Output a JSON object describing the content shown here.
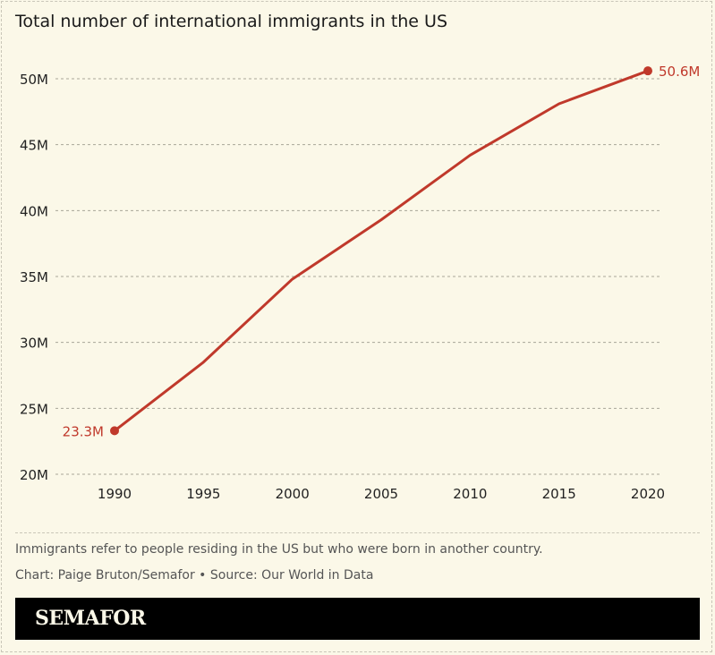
{
  "chart_data": {
    "type": "line",
    "title": "Total number of international immigrants in the US",
    "xlabel": "",
    "ylabel": "",
    "x": [
      1990,
      1995,
      2000,
      2005,
      2010,
      2015,
      2020
    ],
    "series": [
      {
        "values": [
          23.3,
          28.5,
          34.8,
          39.3,
          44.2,
          48.1,
          50.6
        ],
        "color": "#c0392b"
      }
    ],
    "x_ticks": [
      "1990",
      "1995",
      "2000",
      "2005",
      "2010",
      "2015",
      "2020"
    ],
    "y_ticks": [
      20,
      25,
      30,
      35,
      40,
      45,
      50
    ],
    "y_tick_labels": [
      "20M",
      "25M",
      "30M",
      "35M",
      "40M",
      "45M",
      "50M"
    ],
    "ylim": [
      20,
      50
    ],
    "xlim": [
      1990,
      2020
    ],
    "grid": "horizontal dashed",
    "annotations": {
      "start": "23.3M",
      "end": "50.6M"
    }
  },
  "footnote": "Immigrants refer to people residing in the US but who were born in another country.",
  "credit": "Chart: Paige Bruton/Semafor • Source: Our World in Data",
  "logo": "SEMAFOR"
}
